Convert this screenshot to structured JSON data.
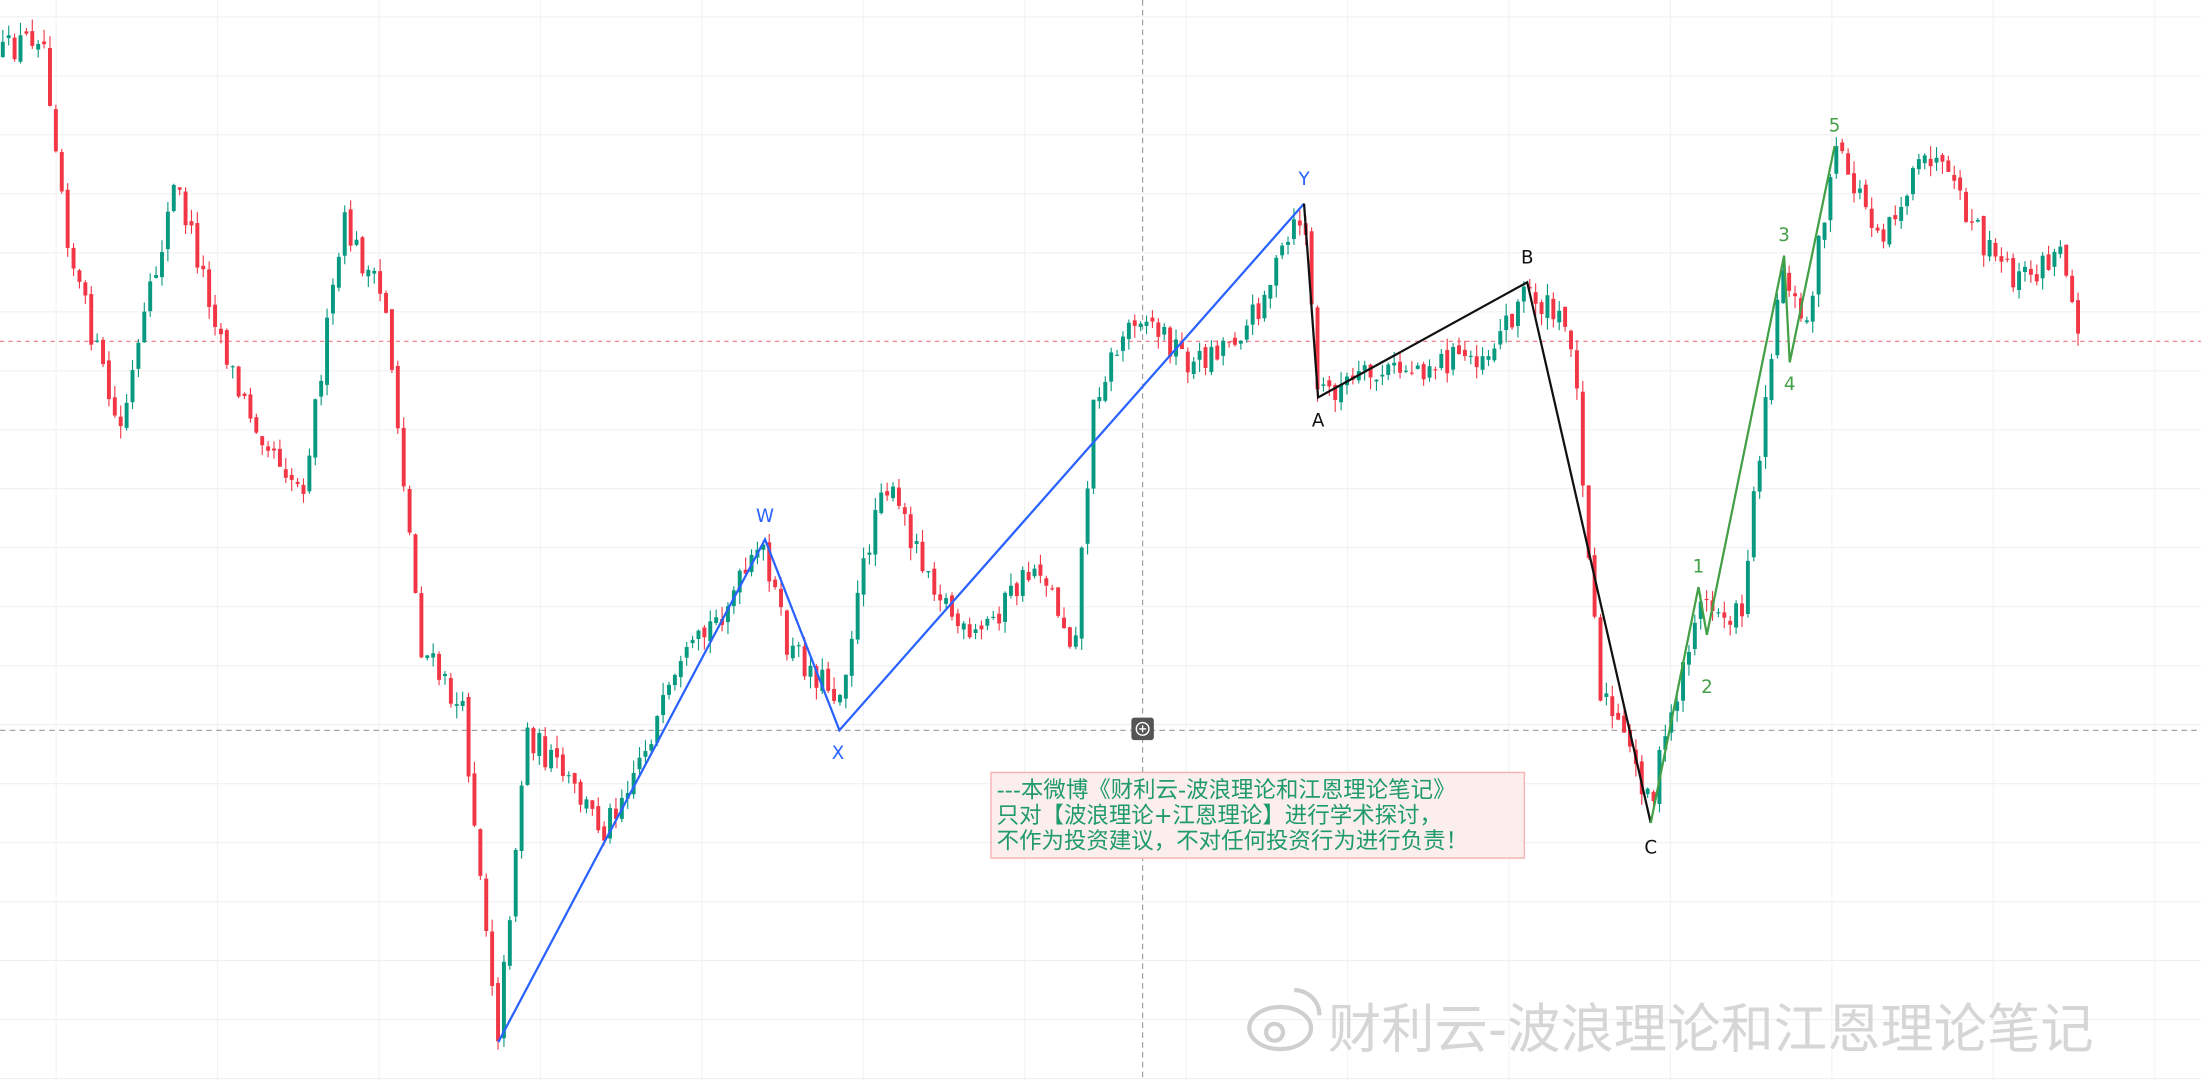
{
  "wave_labels": {
    "W": "W",
    "X": "X",
    "Y": "Y",
    "A": "A",
    "B": "B",
    "C": "C",
    "one": "1",
    "two": "2",
    "three": "3",
    "four": "4",
    "five": "5"
  },
  "note": {
    "lines": [
      "---本微博《财利云-波浪理论和江恩理论笔记》",
      "只对【波浪理论+江恩理论】进行学术探讨，",
      "不作为投资建议，不对任何投资行为进行负责！"
    ]
  },
  "watermark": "财利云-波浪理论和江恩理论笔记"
}
